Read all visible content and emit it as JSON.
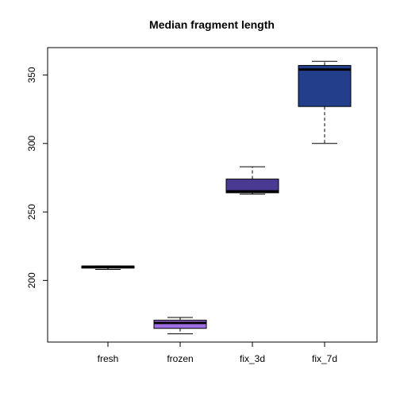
{
  "chart_data": {
    "type": "box",
    "title": "Median fragment length",
    "xlabel": "",
    "ylabel": "",
    "ylim": [
      155,
      370
    ],
    "yticks": [
      200,
      250,
      300,
      350
    ],
    "categories": [
      "fresh",
      "frozen",
      "fix_3d",
      "fix_7d"
    ],
    "boxes": [
      {
        "name": "fresh",
        "min": 208,
        "q1": 209,
        "median": 210,
        "q3": 210.5,
        "max": 210.5,
        "color": "#000000"
      },
      {
        "name": "frozen",
        "min": 161,
        "q1": 165,
        "median": 169,
        "q3": 171,
        "max": 173,
        "color": "#9f6fe3"
      },
      {
        "name": "fix_3d",
        "min": 263,
        "q1": 264,
        "median": 265,
        "q3": 274,
        "max": 283,
        "color": "#4a3a93"
      },
      {
        "name": "fix_7d",
        "min": 300,
        "q1": 327,
        "median": 354,
        "q3": 357,
        "max": 360,
        "color": "#233f8c"
      }
    ],
    "grid": false,
    "legend": "none"
  }
}
